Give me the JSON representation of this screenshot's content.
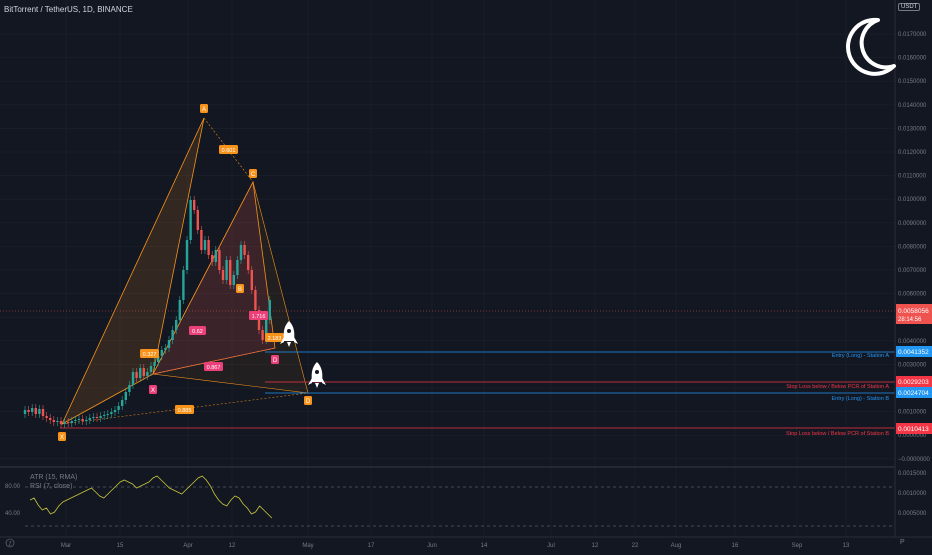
{
  "header": {
    "symbol_title": "BitTorrent / TetherUS, 1D, BINANCE",
    "currency_badge": "USDT",
    "scale_mode": "P"
  },
  "price_axis": {
    "labels": [
      "0.0170000",
      "0.0160000",
      "0.0150000",
      "0.0140000",
      "0.0130000",
      "0.0120000",
      "0.0110000",
      "0.0100000",
      "0.0090000",
      "0.0080000",
      "0.0070000",
      "0.0060000",
      "0.0050000",
      "0.0040000",
      "0.0030000",
      "0.0020000",
      "0.0010000",
      "0.0000000",
      "−0.0000000"
    ],
    "current_price": "0.0058056",
    "countdown": "28:14:56",
    "level_entry_a": "0.0041352",
    "level_stop_a": "0.0029203",
    "level_entry_b": "0.0024704",
    "level_stop_b": "0.0010413"
  },
  "level_labels": {
    "entry_a": "Entry (Long) - Station A",
    "stop_a": "Stop Loss below / Below PCR of Station A",
    "entry_b": "Entry (Long) - Station B",
    "stop_b": "Stop Loss below / Below PCR of Station B"
  },
  "pattern_points": {
    "x": "X",
    "a": "A",
    "b": "B",
    "c": "C",
    "d": "D"
  },
  "pattern_ratios": [
    "0.601",
    "0.327",
    "0.62",
    "1.716",
    "2.183",
    "0.867",
    "0.885"
  ],
  "indicators": {
    "atr_label": "ATR (15, RMA)",
    "rsi_label": "RSI (7, close)",
    "rsi_levels": [
      "80.00",
      "40.00"
    ],
    "atr_axis": [
      "0.0015000",
      "0.0010000",
      "0.0005000"
    ]
  },
  "time_axis": [
    "Mar",
    "15",
    "Apr",
    "12",
    "May",
    "17",
    "Jun",
    "14",
    "Jul",
    "12",
    "22",
    "Aug",
    "16",
    "Sep",
    "13"
  ],
  "colors": {
    "background": "#131722",
    "bull": "#26a69a",
    "bear": "#ef5350",
    "pattern_orange": "#f7931a",
    "level_blue": "#2196f3",
    "level_red": "#f23645"
  },
  "icons": [
    "moon-logo-icon",
    "rocket-icon"
  ]
}
